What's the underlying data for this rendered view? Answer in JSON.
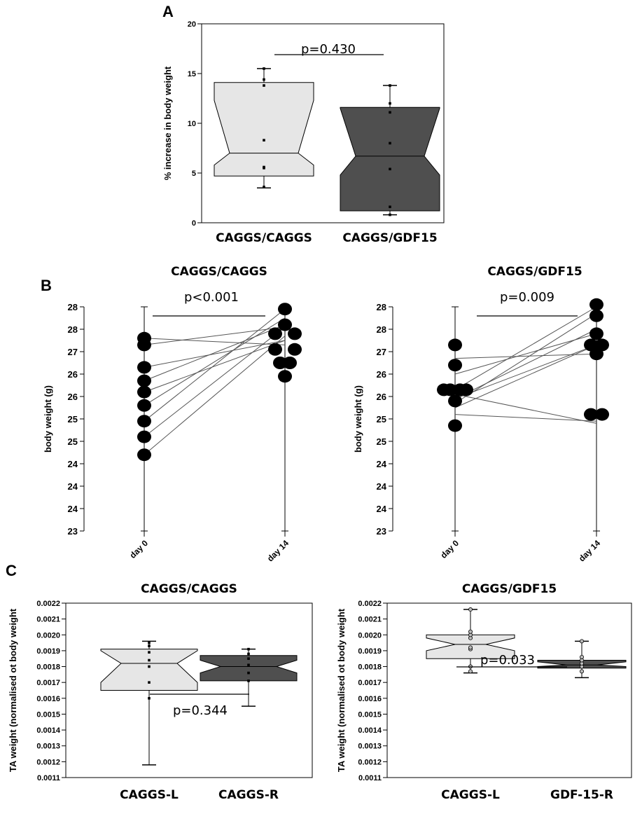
{
  "panels": {
    "a": "A",
    "b": "B",
    "c": "C"
  },
  "chart_data": [
    {
      "id": "A",
      "type": "box",
      "ylabel": "% increase in body weight",
      "ylim": [
        0,
        20
      ],
      "yticks": [
        "0",
        "5",
        "10",
        "15",
        "20"
      ],
      "categories": [
        "CAGGS/CAGGS",
        "CAGGS/GDF15"
      ],
      "colors": [
        "#e6e6e6",
        "#4f4f4f"
      ],
      "boxes": [
        {
          "min": 3.5,
          "q1": 4.7,
          "median": 7.0,
          "notch_low": 5.8,
          "notch_high": 12.3,
          "q3": 14.1,
          "max": 15.5,
          "points": [
            3.6,
            5.5,
            5.6,
            8.3,
            13.8,
            14.4,
            15.5
          ]
        },
        {
          "min": 0.8,
          "q1": 1.2,
          "median": 6.7,
          "notch_low": 4.8,
          "notch_high": 11.5,
          "q3": 11.6,
          "max": 13.8,
          "points": [
            0.8,
            1.6,
            5.4,
            8.0,
            11.1,
            12.0,
            13.8
          ]
        }
      ],
      "p_value": "p=0.430"
    },
    {
      "id": "B-left",
      "type": "paired-dot",
      "title": "CAGGS/CAGGS",
      "ylabel": "body weight (g)",
      "yticks": [
        "23",
        "24",
        "24",
        "24",
        "25",
        "25",
        "26",
        "26",
        "27",
        "28",
        "28"
      ],
      "ylim": [
        0,
        10
      ],
      "categories": [
        "day 0",
        "day 14"
      ],
      "day0": [
        3.4,
        4.2,
        4.9,
        5.6,
        6.2,
        6.7,
        7.3,
        8.3,
        8.6
      ],
      "day14": [
        8.7,
        9.1,
        9.9,
        9.5,
        8.5,
        9.2,
        8.5,
        9.1,
        8.3
      ],
      "day14_dots": [
        [
          0,
          9.9
        ],
        [
          0,
          9.2
        ],
        [
          -0.7,
          8.8
        ],
        [
          0.7,
          8.8
        ],
        [
          -0.7,
          8.1
        ],
        [
          0.7,
          8.1
        ],
        [
          -0.35,
          7.5
        ],
        [
          0.35,
          7.5
        ],
        [
          0,
          6.9
        ]
      ],
      "p_value": "p<0.001"
    },
    {
      "id": "B-right",
      "type": "paired-dot",
      "title": "CAGGS/GDF15",
      "ylabel": "body weight (g)",
      "yticks": [
        "23",
        "24",
        "24",
        "24",
        "25",
        "25",
        "26",
        "26",
        "27",
        "28",
        "28"
      ],
      "ylim": [
        0,
        10
      ],
      "categories": [
        "day 0",
        "day 14"
      ],
      "day0": [
        5.2,
        5.5,
        5.7,
        5.9,
        6.1,
        6.3,
        7.0,
        7.7,
        5.9
      ],
      "day14": [
        4.9,
        8.3,
        9.7,
        8.3,
        4.8,
        10.0,
        8.8,
        7.9,
        9.0
      ],
      "day0_dots": [
        [
          0,
          8.3
        ],
        [
          0,
          7.4
        ],
        [
          -0.8,
          6.3
        ],
        [
          -0.35,
          6.3
        ],
        [
          0.35,
          6.3
        ],
        [
          0.8,
          6.3
        ],
        [
          0,
          5.8
        ],
        [
          0,
          4.7
        ]
      ],
      "day14_dots": [
        [
          0,
          10.1
        ],
        [
          0,
          9.6
        ],
        [
          0,
          8.8
        ],
        [
          -0.4,
          8.3
        ],
        [
          0.4,
          8.3
        ],
        [
          0,
          7.9
        ],
        [
          -0.4,
          5.2
        ],
        [
          0.4,
          5.2
        ]
      ],
      "p_value": "p=0.009"
    },
    {
      "id": "C-left",
      "type": "box",
      "title": "CAGGS/CAGGS",
      "ylabel": "TA weight (normalised ot body weight",
      "ylim": [
        0.0011,
        0.0022
      ],
      "yticks": [
        "0.0011",
        "0.0012",
        "0.0013",
        "0.0014",
        "0.0015",
        "0.0016",
        "0.0017",
        "0.0018",
        "0.0019",
        "0.0020",
        "0.0021",
        "0.0022"
      ],
      "categories": [
        "CAGGS-L",
        "CAGGS-R"
      ],
      "colors": [
        "#e6e6e6",
        "#4f4f4f"
      ],
      "boxes": [
        {
          "min": 0.00118,
          "q1": 0.00165,
          "median": 0.00182,
          "notch_low": 0.0017,
          "notch_high": 0.0019,
          "q3": 0.00191,
          "max": 0.00196,
          "points": [
            0.0016,
            0.0017,
            0.0018,
            0.00184,
            0.00189,
            0.00193,
            0.00195
          ]
        },
        {
          "min": 0.00155,
          "q1": 0.00171,
          "median": 0.0018,
          "notch_low": 0.00176,
          "notch_high": 0.00184,
          "q3": 0.00187,
          "max": 0.00191,
          "points": [
            0.00171,
            0.00176,
            0.00181,
            0.00185,
            0.00188,
            0.00191
          ]
        }
      ],
      "p_value": "p=0.344"
    },
    {
      "id": "C-right",
      "type": "box",
      "title": "CAGGS/GDF15",
      "ylabel": "TA weight (normalised ot body weight",
      "ylim": [
        0.0011,
        0.0022
      ],
      "yticks": [
        "0.0011",
        "0.0012",
        "0.0013",
        "0.0014",
        "0.0015",
        "0.0016",
        "0.0017",
        "0.0018",
        "0.0019",
        "0.0020",
        "0.0021",
        "0.0022"
      ],
      "categories": [
        "CAGGS-L",
        "GDF-15-R"
      ],
      "colors": [
        "#e6e6e6",
        "#4f4f4f"
      ],
      "boxes": [
        {
          "min": 0.00176,
          "q1": 0.00185,
          "median": 0.00194,
          "notch_low": 0.0019,
          "notch_high": 0.00198,
          "q3": 0.002,
          "max": 0.00216,
          "points": [
            0.00177,
            0.0018,
            0.00191,
            0.00192,
            0.00198,
            0.002,
            0.00202,
            0.00216
          ]
        },
        {
          "min": 0.00173,
          "q1": 0.00179,
          "median": 0.00181,
          "notch_low": 0.0018,
          "notch_high": 0.00183,
          "q3": 0.00184,
          "max": 0.00196,
          "points": [
            0.00177,
            0.0018,
            0.00182,
            0.00184,
            0.00186,
            0.00196
          ]
        }
      ],
      "p_value": "p=0.033"
    }
  ]
}
